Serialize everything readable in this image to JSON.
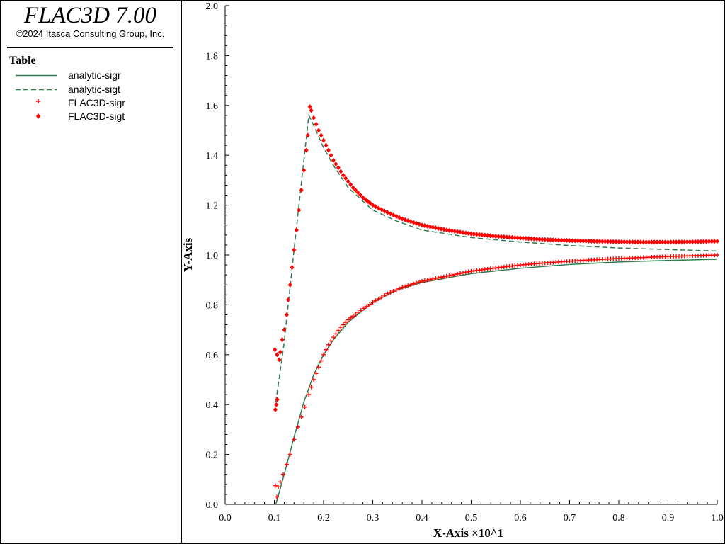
{
  "app": {
    "title": "FLAC3D 7.00",
    "copyright": "©2024 Itasca Consulting Group, Inc."
  },
  "legend": {
    "heading": "Table",
    "items": [
      {
        "label": "analytic-sigr",
        "style": "solid",
        "color": "#2e7d4f"
      },
      {
        "label": "analytic-sigt",
        "style": "dashed",
        "color": "#2e7d4f"
      },
      {
        "label": "FLAC3D-sigr",
        "style": "plus",
        "color": "#ff0000"
      },
      {
        "label": "FLAC3D-sigt",
        "style": "diamond",
        "color": "#ff0000"
      }
    ]
  },
  "chart_data": {
    "type": "line",
    "xlabel": "X-Axis ×10^1",
    "ylabel": "Y-Axis",
    "xlim": [
      0.0,
      1.0
    ],
    "ylim": [
      0.0,
      2.0
    ],
    "xticks": [
      "0.0",
      "0.1",
      "0.2",
      "0.3",
      "0.4",
      "0.5",
      "0.6",
      "0.7",
      "0.8",
      "0.9",
      "1.0"
    ],
    "yticks": [
      "0.0",
      "0.2",
      "0.4",
      "0.6",
      "0.8",
      "1.0",
      "1.2",
      "1.4",
      "1.6",
      "1.8",
      "2.0"
    ],
    "grid": false,
    "series": [
      {
        "name": "analytic-sigr",
        "kind": "line",
        "dash": false,
        "color": "#2e7d4f",
        "points": [
          [
            0.103,
            0.0
          ],
          [
            0.12,
            0.12
          ],
          [
            0.14,
            0.27
          ],
          [
            0.16,
            0.41
          ],
          [
            0.18,
            0.52
          ],
          [
            0.2,
            0.6
          ],
          [
            0.22,
            0.66
          ],
          [
            0.25,
            0.73
          ],
          [
            0.3,
            0.81
          ],
          [
            0.35,
            0.86
          ],
          [
            0.4,
            0.89
          ],
          [
            0.5,
            0.925
          ],
          [
            0.6,
            0.947
          ],
          [
            0.7,
            0.962
          ],
          [
            0.8,
            0.972
          ],
          [
            0.9,
            0.978
          ],
          [
            1.0,
            0.983
          ]
        ]
      },
      {
        "name": "analytic-sigt",
        "kind": "line",
        "dash": true,
        "color": "#2e7d4f",
        "points": [
          [
            0.103,
            0.41
          ],
          [
            0.12,
            0.65
          ],
          [
            0.14,
            1.02
          ],
          [
            0.16,
            1.38
          ],
          [
            0.17,
            1.56
          ],
          [
            0.18,
            1.52
          ],
          [
            0.2,
            1.43
          ],
          [
            0.22,
            1.36
          ],
          [
            0.25,
            1.27
          ],
          [
            0.3,
            1.18
          ],
          [
            0.35,
            1.135
          ],
          [
            0.4,
            1.1
          ],
          [
            0.5,
            1.07
          ],
          [
            0.6,
            1.052
          ],
          [
            0.7,
            1.038
          ],
          [
            0.8,
            1.028
          ],
          [
            0.9,
            1.022
          ],
          [
            1.0,
            1.016
          ]
        ]
      },
      {
        "name": "FLAC3D-sigr",
        "kind": "scatter",
        "marker": "plus",
        "color": "#ff0000",
        "points": [
          [
            0.102,
            0.075
          ],
          [
            0.105,
            0.03
          ],
          [
            0.108,
            0.07
          ],
          [
            0.112,
            0.09
          ],
          [
            0.118,
            0.12
          ],
          [
            0.125,
            0.16
          ],
          [
            0.132,
            0.2
          ],
          [
            0.14,
            0.26
          ],
          [
            0.148,
            0.31
          ],
          [
            0.155,
            0.35
          ],
          [
            0.162,
            0.39
          ],
          [
            0.17,
            0.44
          ],
          [
            0.18,
            0.5
          ],
          [
            0.19,
            0.55
          ],
          [
            0.2,
            0.6
          ],
          [
            0.21,
            0.64
          ],
          [
            0.22,
            0.67
          ],
          [
            0.235,
            0.71
          ],
          [
            0.25,
            0.74
          ],
          [
            0.27,
            0.77
          ],
          [
            0.3,
            0.81
          ],
          [
            0.33,
            0.845
          ],
          [
            0.36,
            0.87
          ],
          [
            0.4,
            0.895
          ],
          [
            0.45,
            0.915
          ],
          [
            0.5,
            0.935
          ],
          [
            0.55,
            0.948
          ],
          [
            0.6,
            0.96
          ],
          [
            0.65,
            0.968
          ],
          [
            0.7,
            0.975
          ],
          [
            0.75,
            0.981
          ],
          [
            0.8,
            0.986
          ],
          [
            0.85,
            0.99
          ],
          [
            0.9,
            0.994
          ],
          [
            0.95,
            0.997
          ],
          [
            1.0,
            1.0
          ]
        ]
      },
      {
        "name": "FLAC3D-sigt",
        "kind": "scatter",
        "marker": "diamond",
        "color": "#ff0000",
        "points": [
          [
            0.102,
            0.38
          ],
          [
            0.104,
            0.4
          ],
          [
            0.106,
            0.42
          ],
          [
            0.101,
            0.62
          ],
          [
            0.11,
            0.58
          ],
          [
            0.112,
            0.61
          ],
          [
            0.116,
            0.66
          ],
          [
            0.12,
            0.7
          ],
          [
            0.125,
            0.76
          ],
          [
            0.128,
            0.82
          ],
          [
            0.132,
            0.88
          ],
          [
            0.136,
            0.95
          ],
          [
            0.14,
            1.02
          ],
          [
            0.145,
            1.1
          ],
          [
            0.15,
            1.18
          ],
          [
            0.155,
            1.26
          ],
          [
            0.16,
            1.34
          ],
          [
            0.165,
            1.42
          ],
          [
            0.168,
            1.48
          ],
          [
            0.172,
            1.595
          ],
          [
            0.175,
            1.58
          ],
          [
            0.18,
            1.55
          ],
          [
            0.19,
            1.5
          ],
          [
            0.2,
            1.46
          ],
          [
            0.21,
            1.42
          ],
          [
            0.22,
            1.38
          ],
          [
            0.24,
            1.32
          ],
          [
            0.26,
            1.27
          ],
          [
            0.28,
            1.23
          ],
          [
            0.3,
            1.2
          ],
          [
            0.33,
            1.17
          ],
          [
            0.36,
            1.145
          ],
          [
            0.4,
            1.12
          ],
          [
            0.45,
            1.1
          ],
          [
            0.5,
            1.085
          ],
          [
            0.55,
            1.075
          ],
          [
            0.6,
            1.068
          ],
          [
            0.65,
            1.062
          ],
          [
            0.7,
            1.058
          ],
          [
            0.75,
            1.055
          ],
          [
            0.8,
            1.053
          ],
          [
            0.85,
            1.052
          ],
          [
            0.9,
            1.052
          ],
          [
            0.95,
            1.053
          ],
          [
            1.0,
            1.055
          ]
        ]
      }
    ]
  }
}
